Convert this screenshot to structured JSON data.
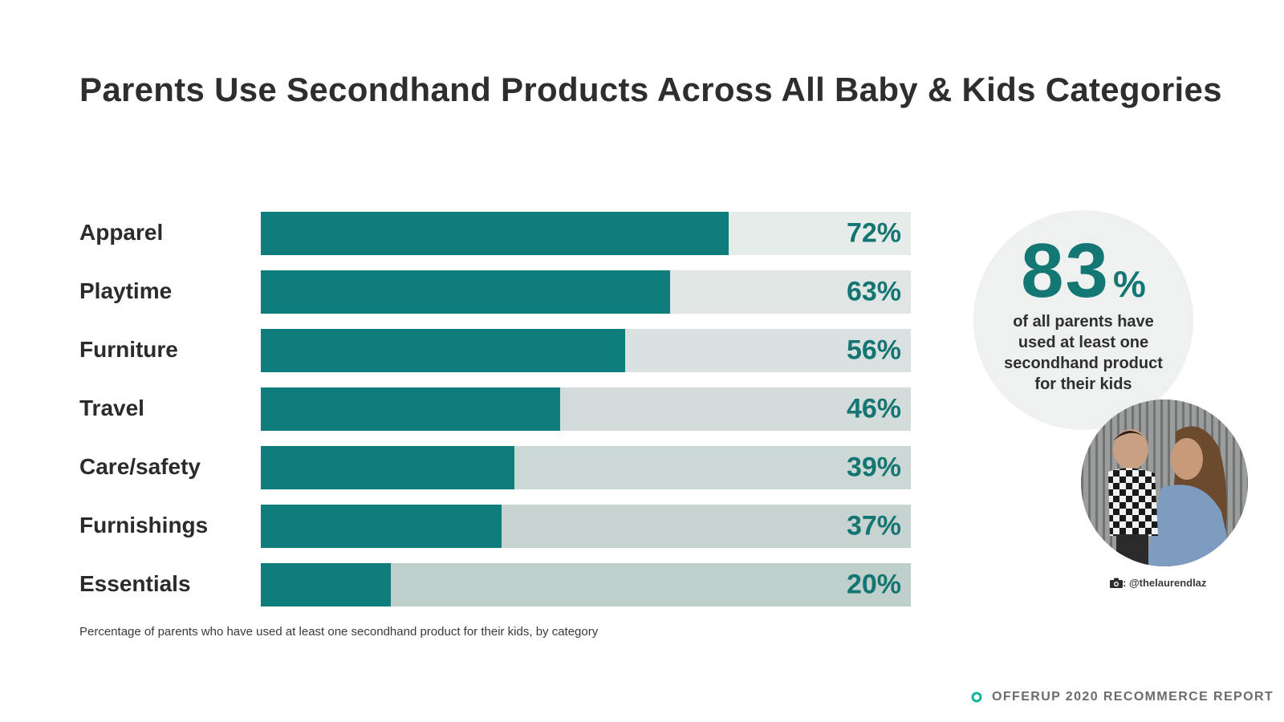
{
  "title": "Parents Use Secondhand Products Across All Baby & Kids Categories",
  "chart_data": {
    "type": "bar",
    "orientation": "horizontal",
    "categories": [
      "Apparel",
      "Playtime",
      "Furniture",
      "Travel",
      "Care/safety",
      "Furnishings",
      "Essentials"
    ],
    "values": [
      72,
      63,
      56,
      46,
      39,
      37,
      20
    ],
    "value_labels": [
      "72%",
      "63%",
      "56%",
      "46%",
      "39%",
      "37%",
      "20%"
    ],
    "xlim": [
      0,
      100
    ],
    "grid": false,
    "colors": {
      "fill": "#0f7d7b",
      "track": [
        "#e5ecea",
        "#dfe6e4",
        "#d9e2e0",
        "#d3dcda",
        "#ccd8d6",
        "#c6d3d1",
        "#bfcfcc"
      ],
      "value_text": "#157573"
    }
  },
  "caption": "Percentage of parents who have used at least one secondhand product for their kids, by category",
  "stat": {
    "number": "83",
    "unit": "%",
    "lines": [
      "of all parents have",
      "used at least one",
      "secondhand product",
      "for their kids"
    ]
  },
  "photo": {
    "icon": "camera-icon",
    "credit": ": @thelaurendlaz"
  },
  "footer": {
    "icon": "offerup-logo-icon",
    "text": "OFFERUP 2020 RECOMMERCE REPORT"
  }
}
